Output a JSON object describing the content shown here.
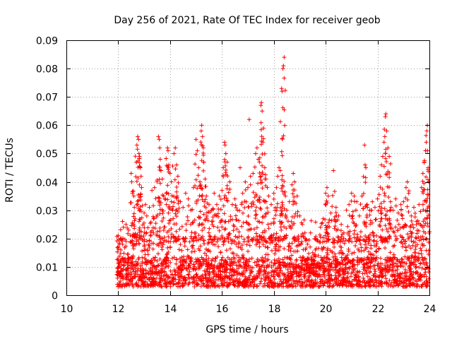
{
  "chart_data": {
    "type": "scatter",
    "title": "Day 256 of 2021, Rate Of TEC Index for receiver geob",
    "xlabel": "GPS time / hours",
    "ylabel": "ROTI / TECUs",
    "xlim": [
      10,
      24
    ],
    "ylim": [
      0,
      0.09
    ],
    "xticks": [
      10,
      12,
      14,
      16,
      18,
      20,
      22,
      24
    ],
    "xtick_labels": [
      "10",
      "12",
      "14",
      "16",
      "18",
      "20",
      "22",
      "24"
    ],
    "yticks": [
      0,
      0.01,
      0.02,
      0.03,
      0.04,
      0.05,
      0.06,
      0.07,
      0.08,
      0.09
    ],
    "ytick_labels": [
      "0",
      "0.01",
      "0.02",
      "0.03",
      "0.04",
      "0.05",
      "0.06",
      "0.07",
      "0.08",
      "0.09"
    ],
    "grid": true,
    "marker": "+",
    "color": "#ff0000",
    "data_time_range_hours": [
      11.95,
      23.98
    ],
    "baseline_roti_tecu": [
      0.003,
      0.015
    ],
    "series": [
      {
        "name": "ROTI",
        "points": [
          [
            12.0,
            0.021
          ],
          [
            12.05,
            0.018
          ],
          [
            12.1,
            0.016
          ],
          [
            12.2,
            0.024
          ],
          [
            12.3,
            0.025
          ],
          [
            12.4,
            0.023
          ],
          [
            12.5,
            0.043
          ],
          [
            12.52,
            0.04
          ],
          [
            12.55,
            0.036
          ],
          [
            12.6,
            0.035
          ],
          [
            12.62,
            0.031
          ],
          [
            12.65,
            0.027
          ],
          [
            12.7,
            0.047
          ],
          [
            12.72,
            0.053
          ],
          [
            12.75,
            0.056
          ],
          [
            12.78,
            0.055
          ],
          [
            12.8,
            0.05
          ],
          [
            12.82,
            0.049
          ],
          [
            12.85,
            0.045
          ],
          [
            12.88,
            0.042
          ],
          [
            12.9,
            0.038
          ],
          [
            13.0,
            0.029
          ],
          [
            13.05,
            0.032
          ],
          [
            13.1,
            0.028
          ],
          [
            13.2,
            0.031
          ],
          [
            13.3,
            0.037
          ],
          [
            13.4,
            0.038
          ],
          [
            13.5,
            0.04
          ],
          [
            13.55,
            0.056
          ],
          [
            13.58,
            0.055
          ],
          [
            13.6,
            0.052
          ],
          [
            13.62,
            0.048
          ],
          [
            13.65,
            0.044
          ],
          [
            13.7,
            0.041
          ],
          [
            13.75,
            0.035
          ],
          [
            13.8,
            0.034
          ],
          [
            13.85,
            0.036
          ],
          [
            13.9,
            0.052
          ],
          [
            13.92,
            0.051
          ],
          [
            13.95,
            0.046
          ],
          [
            14.0,
            0.043
          ],
          [
            14.05,
            0.04
          ],
          [
            14.1,
            0.03
          ],
          [
            14.15,
            0.05
          ],
          [
            14.2,
            0.052
          ],
          [
            14.25,
            0.046
          ],
          [
            14.3,
            0.042
          ],
          [
            14.4,
            0.033
          ],
          [
            14.5,
            0.031
          ],
          [
            14.6,
            0.036
          ],
          [
            14.7,
            0.034
          ],
          [
            14.8,
            0.03
          ],
          [
            14.9,
            0.038
          ],
          [
            15.0,
            0.055
          ],
          [
            15.05,
            0.051
          ],
          [
            15.1,
            0.045
          ],
          [
            15.15,
            0.04
          ],
          [
            15.2,
            0.058
          ],
          [
            15.22,
            0.06
          ],
          [
            15.25,
            0.056
          ],
          [
            15.28,
            0.052
          ],
          [
            15.3,
            0.047
          ],
          [
            15.35,
            0.041
          ],
          [
            15.4,
            0.035
          ],
          [
            15.5,
            0.032
          ],
          [
            15.6,
            0.03
          ],
          [
            15.7,
            0.036
          ],
          [
            15.8,
            0.032
          ],
          [
            15.9,
            0.035
          ],
          [
            16.0,
            0.037
          ],
          [
            16.05,
            0.045
          ],
          [
            16.1,
            0.054
          ],
          [
            16.12,
            0.053
          ],
          [
            16.15,
            0.05
          ],
          [
            16.2,
            0.047
          ],
          [
            16.3,
            0.04
          ],
          [
            16.4,
            0.032
          ],
          [
            16.5,
            0.034
          ],
          [
            16.6,
            0.03
          ],
          [
            16.7,
            0.045
          ],
          [
            16.8,
            0.036
          ],
          [
            16.9,
            0.04
          ],
          [
            17.0,
            0.038
          ],
          [
            17.05,
            0.062
          ],
          [
            17.1,
            0.039
          ],
          [
            17.2,
            0.043
          ],
          [
            17.3,
            0.05
          ],
          [
            17.35,
            0.052
          ],
          [
            17.4,
            0.048
          ],
          [
            17.45,
            0.047
          ],
          [
            17.5,
            0.067
          ],
          [
            17.52,
            0.068
          ],
          [
            17.55,
            0.065
          ],
          [
            17.6,
            0.059
          ],
          [
            17.65,
            0.045
          ],
          [
            17.7,
            0.041
          ],
          [
            17.75,
            0.038
          ],
          [
            17.8,
            0.035
          ],
          [
            17.9,
            0.032
          ],
          [
            18.0,
            0.036
          ],
          [
            18.05,
            0.03
          ],
          [
            18.1,
            0.038
          ],
          [
            18.15,
            0.042
          ],
          [
            18.2,
            0.045
          ],
          [
            18.25,
            0.044
          ],
          [
            18.3,
            0.073
          ],
          [
            18.32,
            0.072
          ],
          [
            18.35,
            0.08
          ],
          [
            18.37,
            0.081
          ],
          [
            18.4,
            0.084
          ],
          [
            18.45,
            0.035
          ],
          [
            18.5,
            0.03
          ],
          [
            18.6,
            0.033
          ],
          [
            18.7,
            0.039
          ],
          [
            18.75,
            0.043
          ],
          [
            18.8,
            0.04
          ],
          [
            18.9,
            0.035
          ],
          [
            19.0,
            0.028
          ],
          [
            19.1,
            0.025
          ],
          [
            19.2,
            0.022
          ],
          [
            19.3,
            0.018
          ],
          [
            19.4,
            0.017
          ],
          [
            19.5,
            0.015
          ],
          [
            19.6,
            0.016
          ],
          [
            19.7,
            0.019
          ],
          [
            19.8,
            0.024
          ],
          [
            19.9,
            0.027
          ],
          [
            20.0,
            0.036
          ],
          [
            20.05,
            0.038
          ],
          [
            20.1,
            0.035
          ],
          [
            20.2,
            0.029
          ],
          [
            20.3,
            0.044
          ],
          [
            20.4,
            0.031
          ],
          [
            20.5,
            0.028
          ],
          [
            20.6,
            0.025
          ],
          [
            20.7,
            0.022
          ],
          [
            20.8,
            0.03
          ],
          [
            20.9,
            0.032
          ],
          [
            21.0,
            0.036
          ],
          [
            21.1,
            0.035
          ],
          [
            21.2,
            0.033
          ],
          [
            21.3,
            0.028
          ],
          [
            21.4,
            0.035
          ],
          [
            21.5,
            0.053
          ],
          [
            21.52,
            0.046
          ],
          [
            21.55,
            0.045
          ],
          [
            21.6,
            0.032
          ],
          [
            21.7,
            0.03
          ],
          [
            21.8,
            0.033
          ],
          [
            21.9,
            0.031
          ],
          [
            22.0,
            0.034
          ],
          [
            22.1,
            0.042
          ],
          [
            22.15,
            0.046
          ],
          [
            22.2,
            0.049
          ],
          [
            22.25,
            0.054
          ],
          [
            22.28,
            0.056
          ],
          [
            22.3,
            0.063
          ],
          [
            22.32,
            0.064
          ],
          [
            22.35,
            0.058
          ],
          [
            22.4,
            0.052
          ],
          [
            22.45,
            0.049
          ],
          [
            22.5,
            0.033
          ],
          [
            22.6,
            0.03
          ],
          [
            22.7,
            0.034
          ],
          [
            22.8,
            0.029
          ],
          [
            22.9,
            0.032
          ],
          [
            23.0,
            0.033
          ],
          [
            23.1,
            0.038
          ],
          [
            23.15,
            0.04
          ],
          [
            23.2,
            0.036
          ],
          [
            23.3,
            0.028
          ],
          [
            23.4,
            0.031
          ],
          [
            23.5,
            0.026
          ],
          [
            23.6,
            0.032
          ],
          [
            23.7,
            0.038
          ],
          [
            23.75,
            0.043
          ],
          [
            23.8,
            0.047
          ],
          [
            23.85,
            0.051
          ],
          [
            23.88,
            0.054
          ],
          [
            23.9,
            0.058
          ],
          [
            23.92,
            0.06
          ],
          [
            23.95,
            0.045
          ],
          [
            23.97,
            0.04
          ]
        ]
      }
    ]
  }
}
